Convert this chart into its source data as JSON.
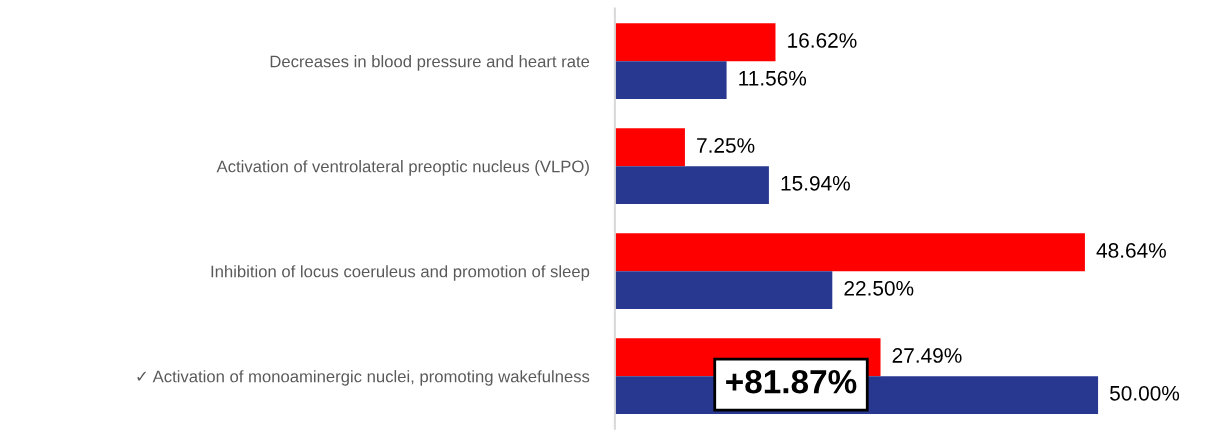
{
  "chart_data": {
    "type": "bar",
    "orientation": "horizontal",
    "grid": false,
    "legend": false,
    "categories": [
      "Decreases in blood pressure and heart rate",
      "Activation of ventrolateral preoptic nucleus (VLPO)",
      "Inhibition of locus coeruleus and promotion of sleep",
      "✓ Activation of monoaminergic nuclei, promoting wakefulness"
    ],
    "series": [
      {
        "color": "#ff0000",
        "values": [
          16.62,
          7.25,
          48.64,
          27.49
        ],
        "value_labels": [
          "16.62%",
          "7.25%",
          "48.64%",
          "27.49%"
        ]
      },
      {
        "color": "#283891",
        "values": [
          11.56,
          15.94,
          22.5,
          50.0
        ],
        "value_labels": [
          "11.56%",
          "15.94%",
          "22.50%",
          "50.00%"
        ]
      }
    ],
    "annotations": [
      "+81.87%"
    ]
  }
}
